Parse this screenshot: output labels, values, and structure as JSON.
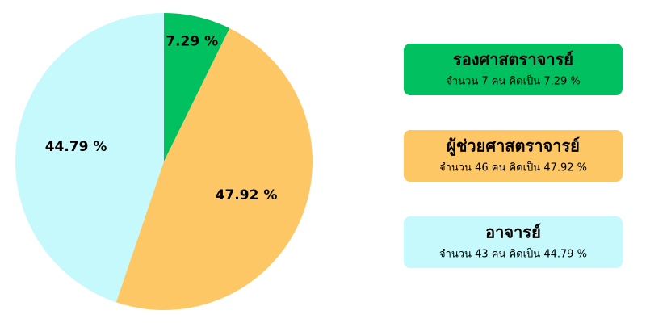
{
  "chart_data": {
    "type": "pie",
    "categories": [
      "รองศาสตราจารย์",
      "ผู้ช่วยศาสตราจารย์",
      "อาจารย์"
    ],
    "values": [
      7.29,
      47.92,
      44.79
    ],
    "value_labels": [
      "7.29 %",
      "47.92 %",
      "44.79 %"
    ],
    "colors": [
      "#00c060",
      "#fdc765",
      "#c5f9fb"
    ],
    "descriptions": [
      "จำนวน 7 คน คิดเป็น 7.29 %",
      "จำนวน 46 คน คิดเป็น 47.92 %",
      "จำนวน 43 คน คิดเป็น 44.79 %"
    ]
  }
}
